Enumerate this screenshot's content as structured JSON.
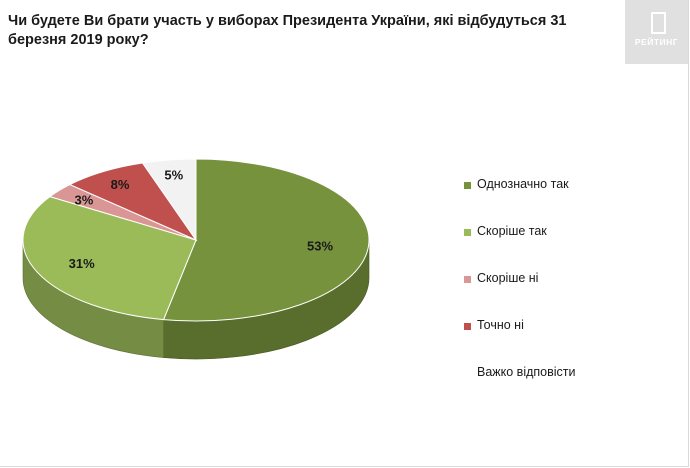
{
  "header": {
    "title": "Чи будете Ви брати участь у виборах Президента України, які відбудуться 31 березня 2019 року?",
    "logo_text": "РЕЙТИНГ"
  },
  "chart_data": {
    "type": "pie",
    "title": "Чи будете Ви брати участь у виборах Президента України, які відбудуться 31 березня 2019 року?",
    "categories": [
      "Однозначно так",
      "Скоріше  так",
      "Скоріше  ні",
      "Точно ні",
      "Важко відповісти"
    ],
    "values": [
      53,
      31,
      3,
      8,
      5
    ],
    "labels": [
      "53%",
      "31%",
      "3%",
      "8%",
      "5%"
    ],
    "colors": [
      "#76923c",
      "#9bbb59",
      "#d99694",
      "#c0504d",
      "#f2f2f2"
    ],
    "legend": "right"
  }
}
